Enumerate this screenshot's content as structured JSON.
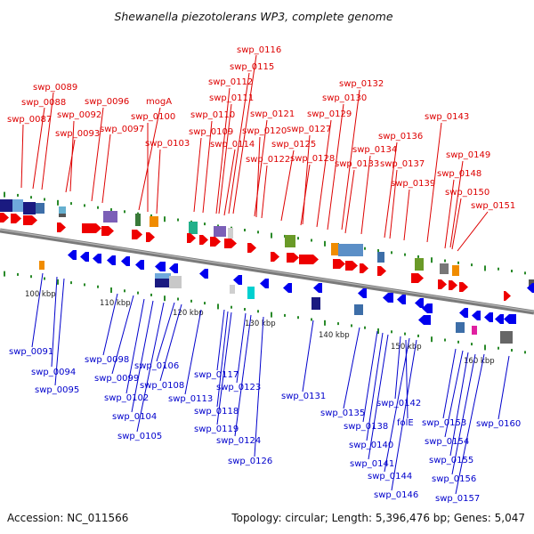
{
  "title": "Shewanella piezotolerans WP3, complete genome",
  "footer": {
    "accession": "Accession: NC_011566",
    "topology": "Topology: circular; Length: 5,396,476 bp; Genes: 5,047"
  },
  "colors": {
    "forward_label": "#dd0000",
    "reverse_label": "#0000cc",
    "forward_gene": "#ee0000",
    "reverse_gene": "#0000ee",
    "backbone": "#7a7a7a",
    "tick_mark": "#2a8a2a"
  },
  "tick_labels": [
    "100 kbp",
    "110 kbp",
    "120 kbp",
    "130 kbp",
    "140 kbp",
    "150 kbp",
    "160 kbp"
  ],
  "top_labels": [
    "swp_0089",
    "swp_0088",
    "swp_0087",
    "swp_0092",
    "swp_0093",
    "swp_0096",
    "swp_0097",
    "mogA",
    "swp_0100",
    "swp_0103",
    "swp_0116",
    "swp_0115",
    "swp_0112",
    "swp_0111",
    "swp_0110",
    "swp_0109",
    "swp_0114",
    "swp_0121",
    "swp_0120",
    "swp_0122",
    "swp_0125",
    "swp_0132",
    "swp_0130",
    "swp_0129",
    "swp_0127",
    "swp_0128",
    "swp_0134",
    "swp_0133",
    "swp_0136",
    "swp_0137",
    "swp_0139",
    "swp_0143",
    "swp_0149",
    "swp_0148",
    "swp_0150",
    "swp_0151"
  ],
  "bottom_labels": [
    "swp_0091",
    "swp_0094",
    "swp_0095",
    "swp_0098",
    "swp_0099",
    "swp_0102",
    "swp_0104",
    "swp_0105",
    "swp_0106",
    "swp_0108",
    "swp_0113",
    "swp_0117",
    "swp_0118",
    "swp_0119",
    "swp_0123",
    "swp_0124",
    "swp_0126",
    "swp_0131",
    "swp_0135",
    "swp_0138",
    "swp_0140",
    "swp_0141",
    "swp_0142",
    "folE",
    "swp_0144",
    "swp_0146",
    "swp_0153",
    "swp_0154",
    "swp_0155",
    "swp_0156",
    "swp_0157",
    "swp_0160"
  ]
}
